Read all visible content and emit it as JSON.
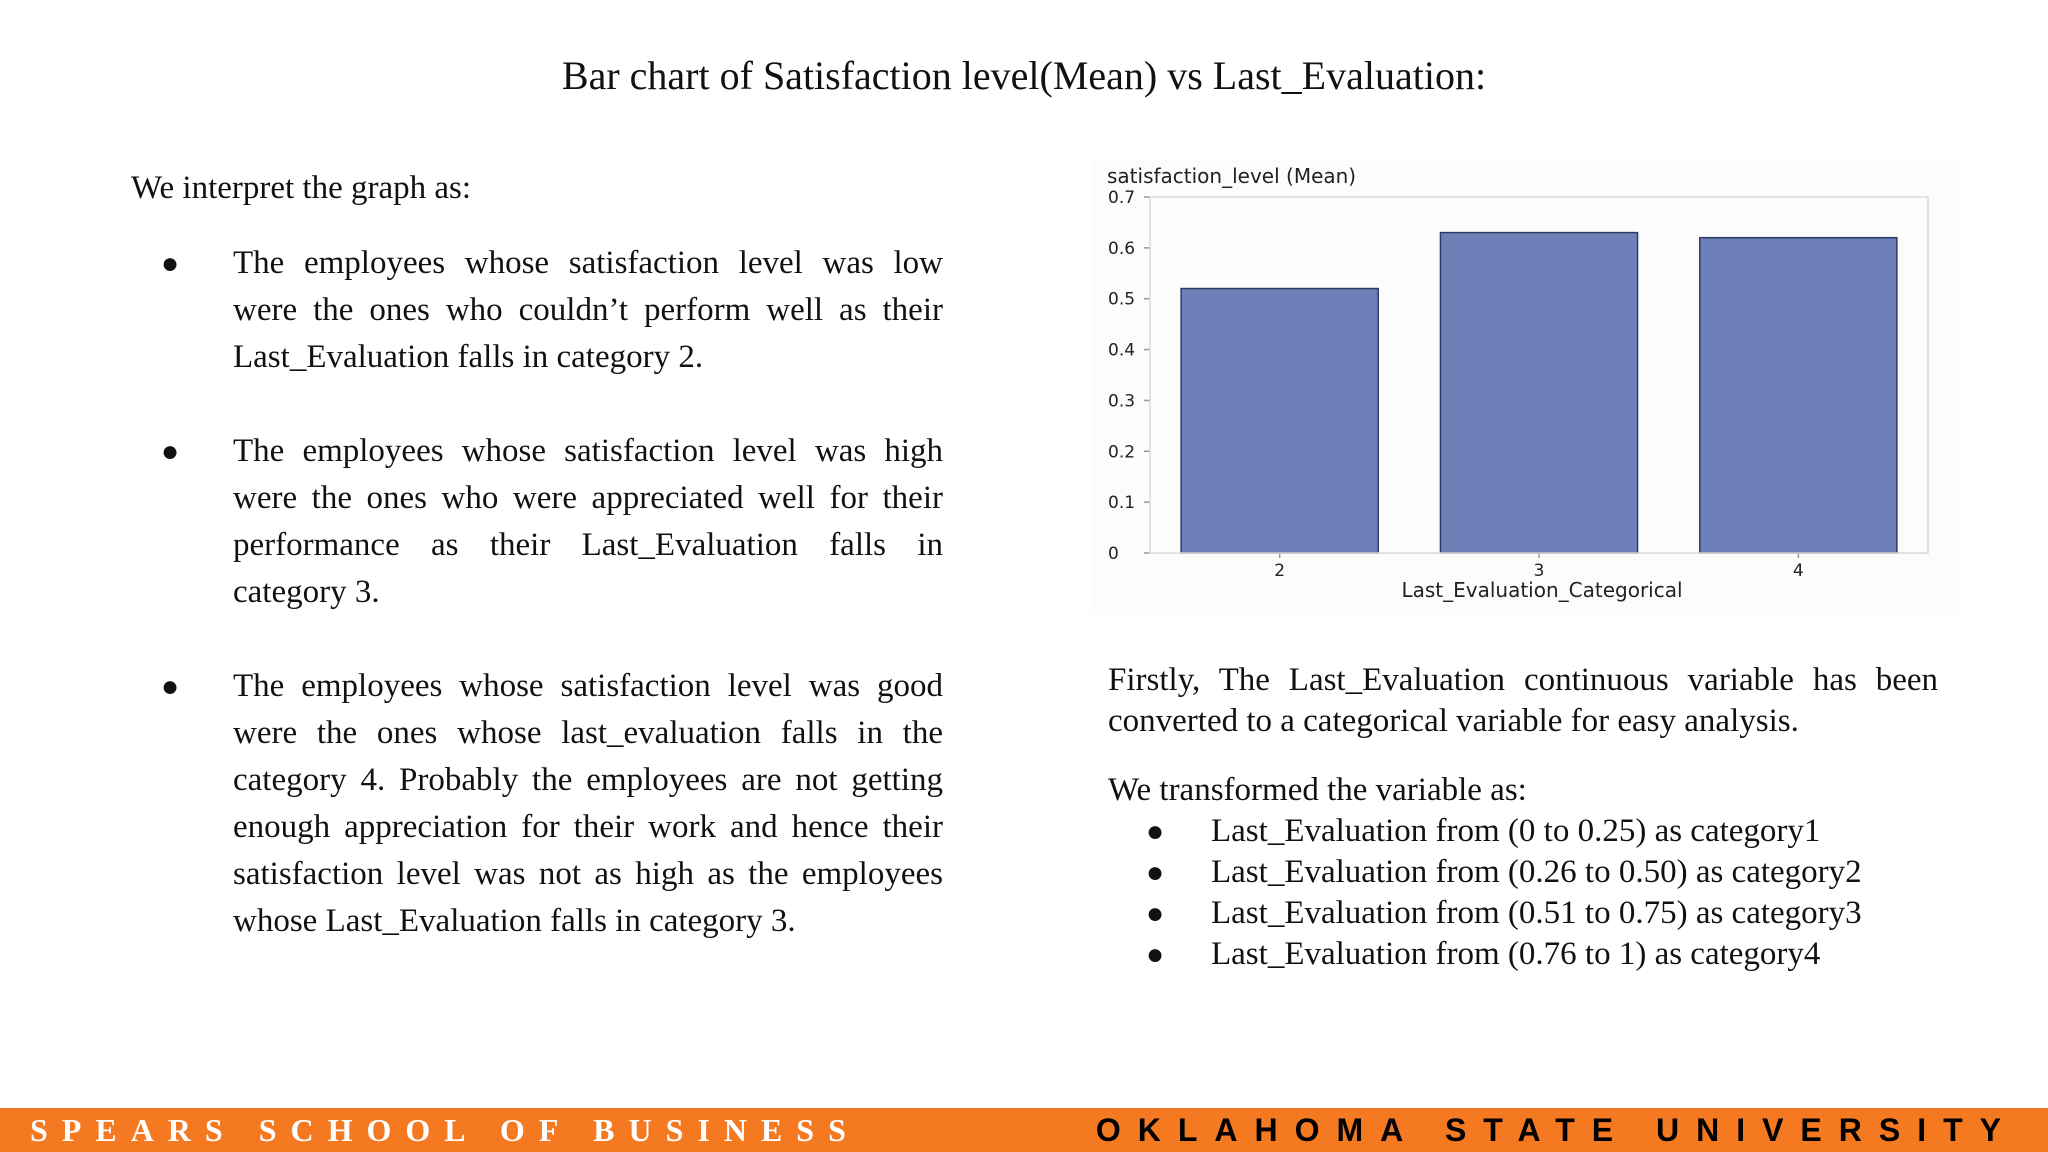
{
  "slide": {
    "title": "Bar chart of Satisfaction level(Mean) vs Last_Evaluation:"
  },
  "left": {
    "intro": "We interpret the graph as:",
    "bullets": [
      "The employees whose satisfaction level was low were the ones who couldn’t perform well as their Last_Evaluation falls in category 2.",
      "The employees whose satisfaction level was high were the ones who were appreciated well for their performance as their Last_Evaluation falls in category 3.",
      "The employees whose satisfaction level was good were the ones whose last_evaluation falls in the category 4. Probably the employees are not getting enough appreciation for their work and hence their satisfaction level was not as high as the employees whose Last_Evaluation falls in category 3."
    ]
  },
  "right": {
    "para1": "Firstly, The Last_Evaluation continuous variable has been converted to a categorical variable for easy analysis.",
    "para2": "We transformed the variable as:",
    "bullets": [
      "Last_Evaluation from (0 to 0.25) as category1",
      "Last_Evaluation from (0.26 to 0.50) as category2",
      "Last_Evaluation from (0.51 to 0.75) as category3",
      "Last_Evaluation from  (0.76 to 1) as category4"
    ]
  },
  "chart_data": {
    "type": "bar",
    "title": "",
    "ylabel": "satisfaction_level (Mean)",
    "xlabel": "Last_Evaluation_Categorical",
    "categories": [
      "2",
      "3",
      "4"
    ],
    "values": [
      0.52,
      0.63,
      0.62
    ],
    "ylim": [
      0,
      0.7
    ],
    "yticks": [
      "0",
      "0.1",
      "0.2",
      "0.3",
      "0.4",
      "0.5",
      "0.6",
      "0.7"
    ],
    "bar_color": "#6f80b9",
    "grid": false,
    "legend": "none"
  },
  "footer": {
    "left_text": "SPEARS SCHOOL OF BUSINESS",
    "right_text": "OKLAHOMA STATE UNIVERSITY",
    "background": "#f47920",
    "left_color": "#ffffff",
    "right_color": "#000000"
  }
}
